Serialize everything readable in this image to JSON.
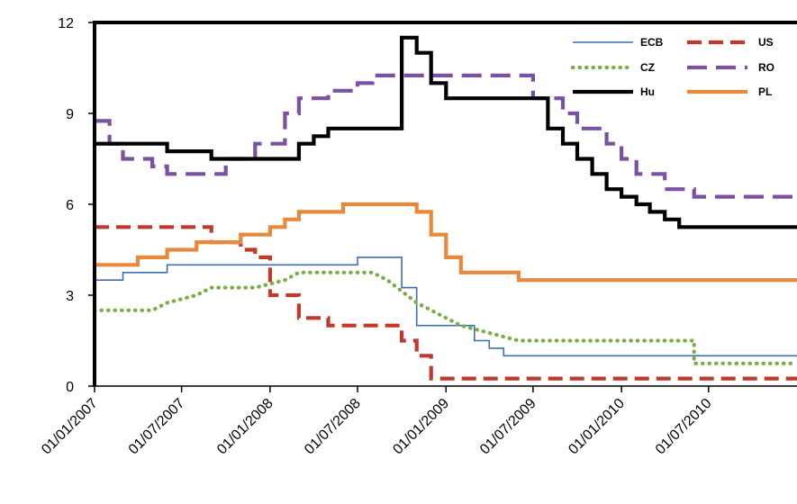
{
  "chart_data": {
    "type": "line",
    "title": "",
    "xlabel": "",
    "ylabel": "",
    "x_range": [
      "01/01/2007",
      "01/01/2011"
    ],
    "ylim": [
      0,
      12
    ],
    "y_ticks": [
      "0",
      "3",
      "6",
      "9",
      "12"
    ],
    "x_ticks": [
      "01/01/2007",
      "01/07/2007",
      "01/01/2008",
      "01/07/2008",
      "01/01/2009",
      "01/07/2009",
      "01/01/2010",
      "01/07/2010"
    ],
    "grid": false,
    "legend_position": "top-right",
    "series": [
      {
        "name": "ECB",
        "color": "#3a6fb0",
        "dash": "solid",
        "width": "thin",
        "step": true,
        "points": [
          [
            "01/01/2007",
            3.5
          ],
          [
            "01/03/2007",
            3.75
          ],
          [
            "01/06/2007",
            4.0
          ],
          [
            "01/07/2008",
            4.0
          ],
          [
            "01/07/2008",
            4.25
          ],
          [
            "01/10/2008",
            3.25
          ],
          [
            "01/11/2008",
            2.0
          ],
          [
            "01/01/2009",
            2.0
          ],
          [
            "01/03/2009",
            1.5
          ],
          [
            "01/04/2009",
            1.25
          ],
          [
            "01/05/2009",
            1.0
          ],
          [
            "01/01/2011",
            1.0
          ]
        ]
      },
      {
        "name": "US",
        "color": "#c0392b",
        "dash": "dashed",
        "width": "thick",
        "step": true,
        "points": [
          [
            "01/01/2007",
            5.25
          ],
          [
            "01/09/2007",
            4.75
          ],
          [
            "01/11/2007",
            4.5
          ],
          [
            "01/12/2007",
            4.25
          ],
          [
            "01/01/2008",
            3.0
          ],
          [
            "01/03/2008",
            2.25
          ],
          [
            "01/05/2008",
            2.0
          ],
          [
            "01/10/2008",
            1.5
          ],
          [
            "01/11/2008",
            1.0
          ],
          [
            "01/12/2008",
            0.25
          ],
          [
            "01/01/2011",
            0.25
          ]
        ]
      },
      {
        "name": "CZ",
        "color": "#7cac45",
        "dash": "dotted",
        "width": "thick",
        "step": false,
        "points": [
          [
            "01/01/2007",
            2.5
          ],
          [
            "01/05/2007",
            2.5
          ],
          [
            "01/06/2007",
            2.75
          ],
          [
            "01/08/2007",
            3.0
          ],
          [
            "01/09/2007",
            3.25
          ],
          [
            "01/12/2007",
            3.25
          ],
          [
            "01/02/2008",
            3.5
          ],
          [
            "01/03/2008",
            3.75
          ],
          [
            "01/08/2008",
            3.75
          ],
          [
            "01/09/2008",
            3.5
          ],
          [
            "01/11/2008",
            2.75
          ],
          [
            "01/01/2009",
            2.25
          ],
          [
            "01/02/2009",
            2.0
          ],
          [
            "01/06/2009",
            1.5
          ],
          [
            "01/01/2010",
            1.5
          ],
          [
            "01/06/2010",
            1.5
          ],
          [
            "01/06/2010",
            0.75
          ],
          [
            "01/01/2011",
            0.75
          ]
        ]
      },
      {
        "name": "RO",
        "color": "#7b52a2",
        "dash": "longdash",
        "width": "thick",
        "step": true,
        "points": [
          [
            "01/01/2007",
            8.75
          ],
          [
            "01/02/2007",
            8.0
          ],
          [
            "01/03/2007",
            7.5
          ],
          [
            "01/05/2007",
            7.25
          ],
          [
            "01/06/2007",
            7.0
          ],
          [
            "01/10/2007",
            7.5
          ],
          [
            "01/12/2007",
            8.0
          ],
          [
            "01/02/2008",
            9.0
          ],
          [
            "01/03/2008",
            9.5
          ],
          [
            "01/05/2008",
            9.75
          ],
          [
            "01/07/2008",
            10.0
          ],
          [
            "01/08/2008",
            10.25
          ],
          [
            "01/07/2009",
            9.5
          ],
          [
            "01/09/2009",
            9.0
          ],
          [
            "01/10/2009",
            8.5
          ],
          [
            "01/12/2009",
            8.0
          ],
          [
            "01/01/2010",
            7.5
          ],
          [
            "01/02/2010",
            7.0
          ],
          [
            "01/04/2010",
            6.5
          ],
          [
            "01/06/2010",
            6.25
          ],
          [
            "01/01/2011",
            6.25
          ]
        ]
      },
      {
        "name": "Hu",
        "color": "#000000",
        "dash": "solid",
        "width": "thick",
        "step": true,
        "points": [
          [
            "01/01/2007",
            8.0
          ],
          [
            "01/06/2007",
            7.75
          ],
          [
            "01/09/2007",
            7.5
          ],
          [
            "01/03/2008",
            8.0
          ],
          [
            "01/04/2008",
            8.25
          ],
          [
            "01/05/2008",
            8.5
          ],
          [
            "01/10/2008",
            11.5
          ],
          [
            "01/11/2008",
            11.0
          ],
          [
            "01/12/2008",
            10.5
          ],
          [
            "01/12/2008",
            10.0
          ],
          [
            "01/01/2009",
            9.5
          ],
          [
            "01/07/2009",
            9.5
          ],
          [
            "01/08/2009",
            8.5
          ],
          [
            "01/09/2009",
            8.0
          ],
          [
            "01/10/2009",
            7.5
          ],
          [
            "01/11/2009",
            7.0
          ],
          [
            "01/12/2009",
            6.5
          ],
          [
            "01/01/2010",
            6.25
          ],
          [
            "01/02/2010",
            6.0
          ],
          [
            "01/03/2010",
            5.75
          ],
          [
            "01/04/2010",
            5.5
          ],
          [
            "01/05/2010",
            5.25
          ],
          [
            "01/01/2011",
            5.25
          ]
        ]
      },
      {
        "name": "PL",
        "color": "#e8883a",
        "dash": "solid",
        "width": "thick",
        "step": true,
        "points": [
          [
            "01/01/2007",
            4.0
          ],
          [
            "01/04/2007",
            4.25
          ],
          [
            "01/06/2007",
            4.5
          ],
          [
            "01/08/2007",
            4.75
          ],
          [
            "01/11/2007",
            5.0
          ],
          [
            "01/01/2008",
            5.25
          ],
          [
            "01/02/2008",
            5.5
          ],
          [
            "01/03/2008",
            5.75
          ],
          [
            "01/06/2008",
            6.0
          ],
          [
            "01/11/2008",
            5.75
          ],
          [
            "01/12/2008",
            5.0
          ],
          [
            "01/01/2009",
            4.25
          ],
          [
            "01/02/2009",
            3.75
          ],
          [
            "01/06/2009",
            3.5
          ],
          [
            "01/01/2011",
            3.5
          ]
        ]
      }
    ]
  }
}
